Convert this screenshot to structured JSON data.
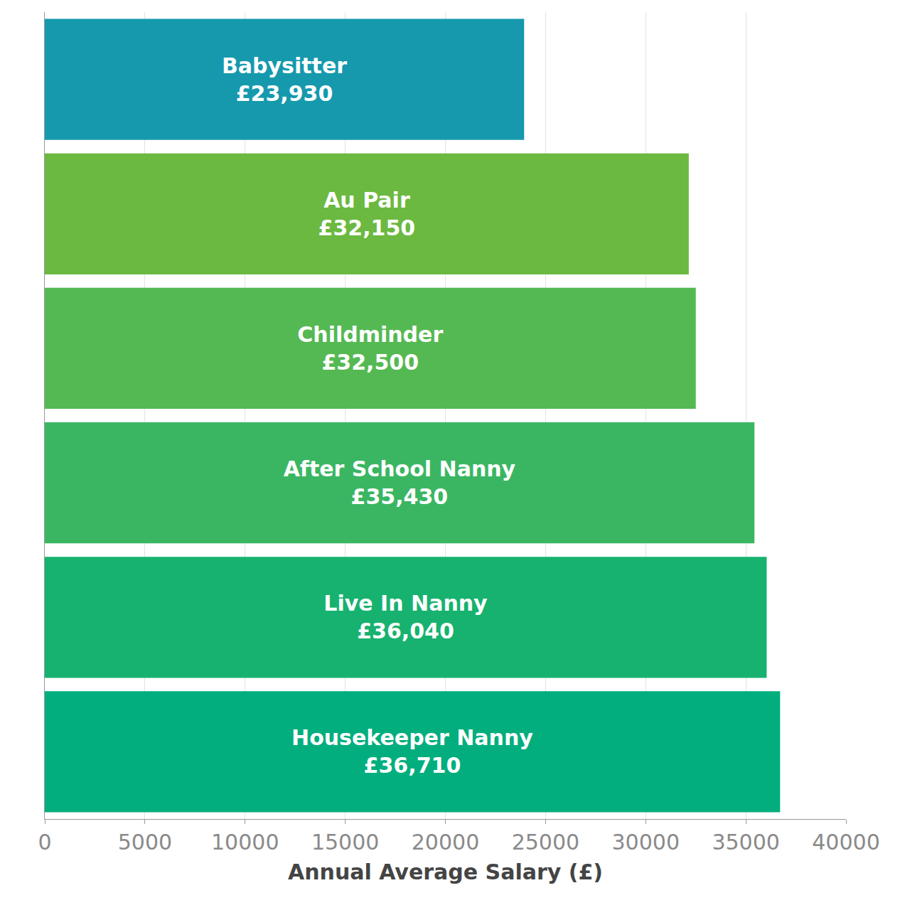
{
  "chart_data": {
    "type": "bar",
    "orientation": "horizontal",
    "categories": [
      "Babysitter",
      "Au Pair",
      "Childminder",
      "After School Nanny",
      "Live In Nanny",
      "Housekeeper Nanny"
    ],
    "values": [
      23930,
      32150,
      32500,
      35430,
      36040,
      36710
    ],
    "value_labels": [
      "£23,930",
      "£32,150",
      "£32,500",
      "£35,430",
      "£36,040",
      "£36,710"
    ],
    "colors": [
      "#1699ad",
      "#6bb940",
      "#55b953",
      "#3ab663",
      "#17b26f",
      "#02ae7e"
    ],
    "xlabel": "Annual Average Salary (£)",
    "xlim": [
      0,
      40000
    ],
    "xticks": [
      0,
      5000,
      10000,
      15000,
      20000,
      25000,
      30000,
      35000,
      40000
    ],
    "grid": true,
    "data_labels": true,
    "tick_labels": "x"
  }
}
